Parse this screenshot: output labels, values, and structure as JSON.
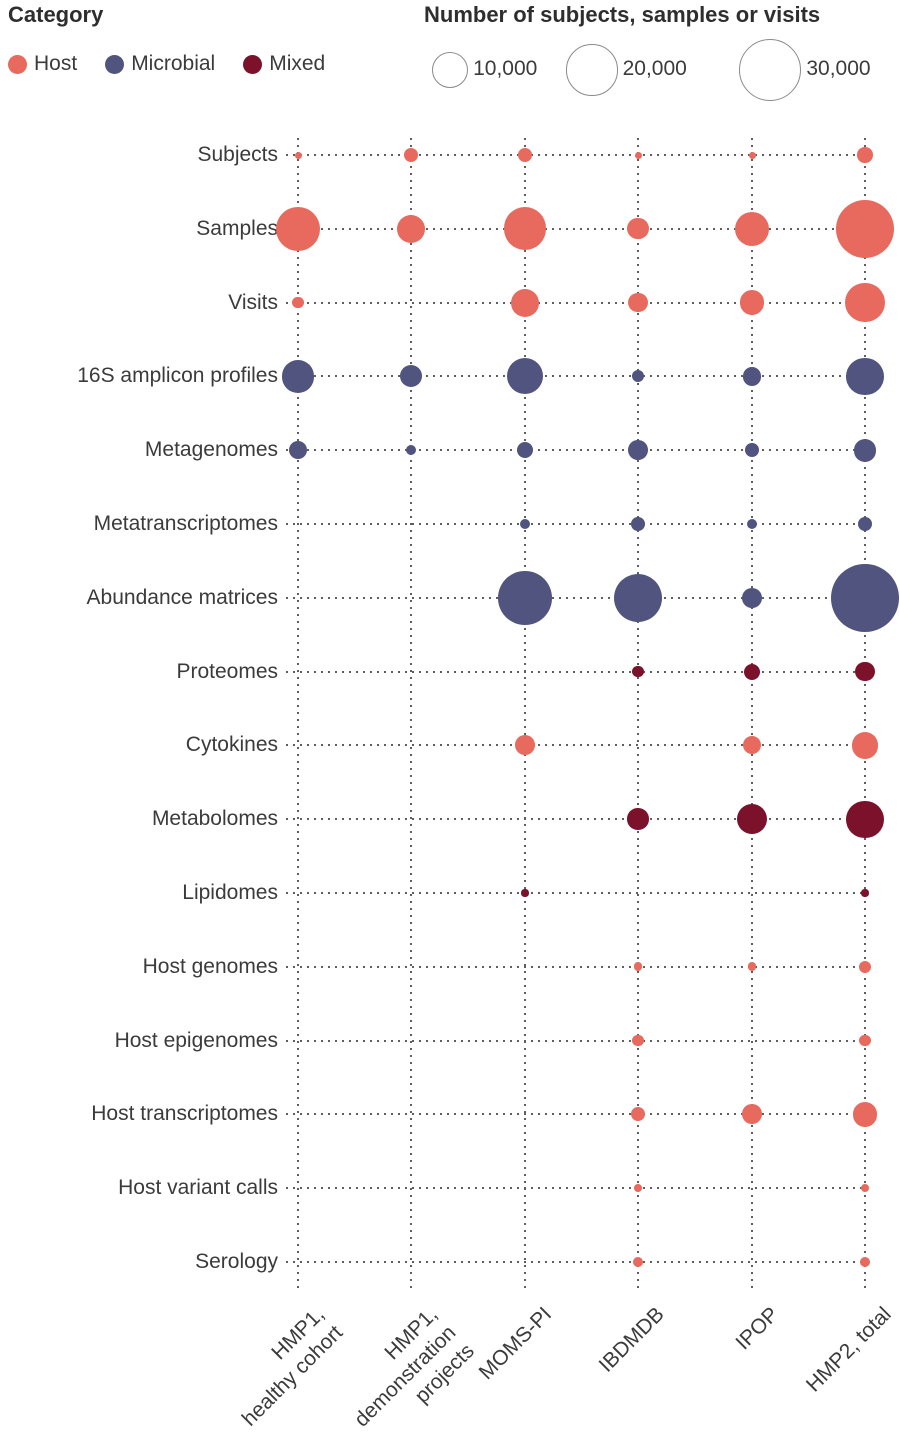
{
  "category_legend": {
    "title": "Category",
    "items": [
      {
        "label": "Host",
        "color": "#E8695E"
      },
      {
        "label": "Microbial",
        "color": "#50547E"
      },
      {
        "label": "Mixed",
        "color": "#7C112B"
      }
    ]
  },
  "size_legend": {
    "title": "Number of subjects, samples or visits",
    "entries": [
      {
        "label": "10,000",
        "value": 10000
      },
      {
        "label": "20,000",
        "value": 20000
      },
      {
        "label": "30,000",
        "value": 30000
      }
    ]
  },
  "chart_data": {
    "type": "scatter",
    "subtype": "bubble-matrix",
    "scale": "bubble area proportional to value; radius_px = 0.181 * sqrt(value)",
    "category_colors": {
      "host": "#E8695E",
      "microbial": "#50547E",
      "mixed": "#7C112B"
    },
    "columns": [
      "HMP1,\nhealthy cohort",
      "HMP1,\ndemonstration\nprojects",
      "MOMS-PI",
      "IBDMDB",
      "IPOP",
      "HMP2, total"
    ],
    "rows": [
      {
        "label": "Subjects",
        "category": "host",
        "values": [
          300,
          1500,
          1600,
          130,
          110,
          1900
        ]
      },
      {
        "label": "Samples",
        "category": "host",
        "values": [
          15000,
          6000,
          14000,
          3500,
          9000,
          26000
        ]
      },
      {
        "label": "Visits",
        "category": "host",
        "values": [
          1000,
          null,
          6000,
          3000,
          4500,
          12000
        ]
      },
      {
        "label": "16S amplicon profiles",
        "category": "microbial",
        "values": [
          8000,
          3700,
          10000,
          1100,
          2600,
          10500
        ]
      },
      {
        "label": "Metagenomes",
        "category": "microbial",
        "values": [
          2500,
          800,
          2000,
          3000,
          1500,
          4000
        ]
      },
      {
        "label": "Metatranscriptomes",
        "category": "microbial",
        "values": [
          null,
          null,
          800,
          1500,
          900,
          1600
        ]
      },
      {
        "label": "Abundance matrices",
        "category": "microbial",
        "values": [
          null,
          null,
          22000,
          18000,
          3000,
          35000
        ]
      },
      {
        "label": "Proteomes",
        "category": "mixed",
        "values": [
          null,
          null,
          null,
          1000,
          2000,
          3000
        ]
      },
      {
        "label": "Cytokines",
        "category": "host",
        "values": [
          null,
          null,
          3000,
          null,
          2500,
          5500
        ]
      },
      {
        "label": "Metabolomes",
        "category": "mixed",
        "values": [
          null,
          null,
          null,
          3500,
          7000,
          10500
        ]
      },
      {
        "label": "Lipidomes",
        "category": "mixed",
        "values": [
          null,
          null,
          400,
          null,
          null,
          400
        ]
      },
      {
        "label": "Host genomes",
        "category": "host",
        "values": [
          null,
          null,
          null,
          600,
          600,
          1200
        ]
      },
      {
        "label": "Host epigenomes",
        "category": "host",
        "values": [
          null,
          null,
          null,
          1000,
          null,
          1000
        ]
      },
      {
        "label": "Host transcriptomes",
        "category": "host",
        "values": [
          null,
          null,
          null,
          1500,
          3000,
          4500
        ]
      },
      {
        "label": "Host variant calls",
        "category": "host",
        "values": [
          null,
          null,
          null,
          500,
          null,
          500
        ]
      },
      {
        "label": "Serology",
        "category": "host",
        "values": [
          null,
          null,
          null,
          900,
          null,
          900
        ]
      }
    ]
  }
}
